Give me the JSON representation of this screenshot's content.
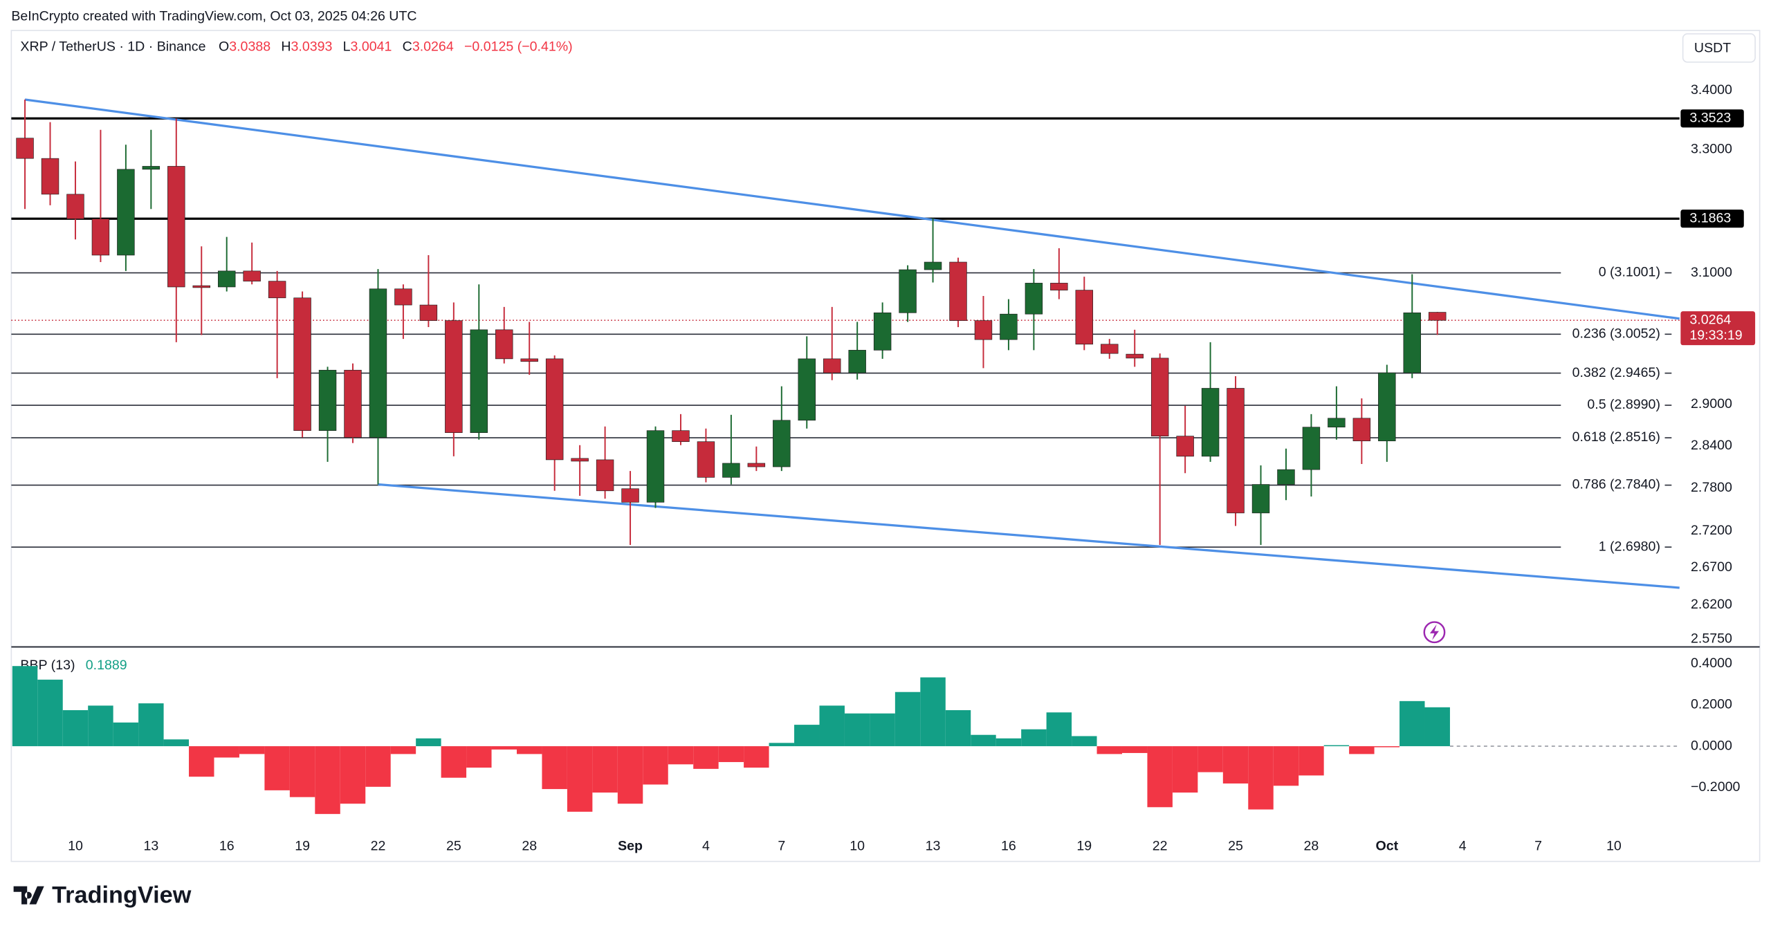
{
  "header": {
    "credit": "BeInCrypto created with TradingView.com, Oct 03, 2025 04:26 UTC",
    "symbol": "XRP / TetherUS · 1D · Binance",
    "o": "O",
    "h": "H",
    "l": "L",
    "c": "C",
    "change": "−0.0125 (−0.41%)",
    "currency": "USDT",
    "countdown": "19:33:19"
  },
  "footer": {
    "brand": "TradingView"
  },
  "chart_data": [
    {
      "type": "candlestick",
      "log_scale": true,
      "categories": [
        null,
        null,
        "10",
        null,
        null,
        "13",
        null,
        null,
        "16",
        null,
        null,
        "19",
        null,
        null,
        "22",
        null,
        null,
        "25",
        null,
        null,
        "28",
        null,
        null,
        null,
        "Sep",
        null,
        null,
        "4",
        null,
        null,
        "7",
        null,
        null,
        "10",
        null,
        null,
        "13",
        null,
        null,
        "16",
        null,
        null,
        "19",
        null,
        null,
        "22",
        null,
        null,
        "25",
        null,
        null,
        "28",
        null,
        null,
        "Oct",
        null,
        null,
        "4",
        null,
        null,
        "7",
        null,
        null,
        "10",
        null,
        null
      ],
      "open": [
        3.319,
        3.285,
        3.226,
        3.186,
        3.128,
        3.267,
        3.272,
        3.08,
        3.078,
        3.103,
        3.087,
        3.061,
        2.862,
        2.951,
        2.852,
        3.075,
        3.05,
        3.026,
        2.859,
        3.012,
        2.968,
        2.968,
        2.822,
        2.82,
        2.779,
        2.76,
        2.862,
        2.846,
        2.795,
        2.815,
        2.81,
        2.877,
        2.968,
        2.947,
        2.981,
        3.038,
        3.105,
        3.117,
        3.026,
        2.997,
        3.036,
        3.084,
        3.073,
        2.99,
        2.975,
        2.969,
        2.854,
        2.825,
        2.924,
        2.745,
        2.785,
        2.806,
        2.867,
        2.88,
        2.847,
        2.947,
        3.0388,
        null,
        null,
        null,
        null,
        null,
        null,
        null,
        null,
        null
      ],
      "high": [
        3.3845,
        3.346,
        3.28,
        3.333,
        3.308,
        3.333,
        3.352,
        3.142,
        3.157,
        3.148,
        3.103,
        3.071,
        2.956,
        2.961,
        3.106,
        3.082,
        3.128,
        3.054,
        3.082,
        3.047,
        3.024,
        2.973,
        2.841,
        2.868,
        2.804,
        2.868,
        2.886,
        2.865,
        2.885,
        2.839,
        2.927,
        3.002,
        3.047,
        3.024,
        3.054,
        3.112,
        3.187,
        3.124,
        3.064,
        3.059,
        3.106,
        3.139,
        3.094,
        2.998,
        3.012,
        2.976,
        2.898,
        2.993,
        2.942,
        2.812,
        2.836,
        2.886,
        2.927,
        2.909,
        2.959,
        3.098,
        3.0393,
        null,
        null,
        null,
        null,
        null,
        null,
        null,
        null,
        null
      ],
      "low": [
        3.202,
        3.208,
        3.153,
        3.117,
        3.103,
        3.202,
        2.993,
        3.004,
        3.071,
        3.082,
        2.939,
        2.852,
        2.817,
        2.844,
        2.785,
        2.998,
        3.016,
        2.825,
        2.849,
        2.961,
        2.944,
        2.776,
        2.769,
        2.765,
        2.701,
        2.752,
        2.841,
        2.788,
        2.785,
        2.804,
        2.804,
        2.865,
        2.936,
        2.937,
        2.968,
        3.024,
        3.085,
        3.016,
        2.954,
        2.981,
        2.981,
        3.059,
        2.981,
        2.968,
        2.956,
        2.701,
        2.801,
        2.817,
        2.727,
        2.701,
        2.763,
        2.768,
        2.849,
        2.814,
        2.817,
        2.939,
        3.0041,
        null,
        null,
        null,
        null,
        null,
        null,
        null,
        null,
        null
      ],
      "close": [
        3.285,
        3.226,
        3.186,
        3.128,
        3.267,
        3.272,
        3.078,
        3.077,
        3.103,
        3.087,
        3.061,
        2.862,
        2.951,
        2.852,
        3.075,
        3.05,
        3.026,
        2.859,
        3.012,
        2.968,
        2.964,
        2.82,
        2.818,
        2.776,
        2.76,
        2.862,
        2.846,
        2.795,
        2.815,
        2.81,
        2.877,
        2.968,
        2.947,
        2.981,
        3.038,
        3.105,
        3.117,
        3.026,
        2.997,
        3.036,
        3.084,
        3.073,
        2.99,
        2.976,
        2.969,
        2.854,
        2.825,
        2.924,
        2.745,
        2.785,
        2.806,
        2.867,
        2.88,
        2.847,
        2.947,
        3.038,
        3.0264,
        null,
        null,
        null,
        null,
        null,
        null,
        null,
        null,
        null
      ],
      "up_color": "#1b6a31",
      "down_color": "#c62b3b",
      "ylim": [
        2.565,
        3.503
      ],
      "yticks": [
        {
          "value": 3.4,
          "label": "3.4000"
        },
        {
          "value": 3.3,
          "label": "3.3000"
        },
        {
          "value": 3.1,
          "label": "3.1000"
        },
        {
          "value": 2.9,
          "label": "2.9000"
        },
        {
          "value": 2.84,
          "label": "2.8400"
        },
        {
          "value": 2.78,
          "label": "2.7800"
        },
        {
          "value": 2.72,
          "label": "2.7200"
        },
        {
          "value": 2.67,
          "label": "2.6700"
        },
        {
          "value": 2.62,
          "label": "2.6200"
        },
        {
          "value": 2.575,
          "label": "2.5750"
        }
      ],
      "horizontal_levels": [
        3.3523,
        3.1863
      ],
      "fib_levels": [
        {
          "value": 3.1001,
          "label": "0 (3.1001)"
        },
        {
          "value": 3.0052,
          "label": "0.236 (3.0052)"
        },
        {
          "value": 2.9465,
          "label": "0.382 (2.9465)"
        },
        {
          "value": 2.899,
          "label": "0.5 (2.8990)"
        },
        {
          "value": 2.8516,
          "label": "0.618 (2.8516)"
        },
        {
          "value": 2.784,
          "label": "0.786 (2.7840)"
        },
        {
          "value": 2.698,
          "label": "1 (2.6980)"
        }
      ],
      "trendlines": [
        {
          "x0": 0,
          "y0": 3.3845,
          "x1": 65.6,
          "y1": 3.029
        },
        {
          "x0": 14,
          "y0": 2.785,
          "x1": 65.6,
          "y1": 2.643
        }
      ],
      "trend_color": "#4d8fe6"
    },
    {
      "type": "bar",
      "title": "BBP (13)",
      "values": [
        0.389,
        0.323,
        0.175,
        0.197,
        0.115,
        0.208,
        0.033,
        -0.148,
        -0.055,
        -0.038,
        -0.214,
        -0.247,
        -0.329,
        -0.279,
        -0.197,
        -0.038,
        0.038,
        -0.153,
        -0.104,
        -0.016,
        -0.038,
        -0.208,
        -0.318,
        -0.225,
        -0.279,
        -0.186,
        -0.088,
        -0.11,
        -0.077,
        -0.104,
        0.016,
        0.104,
        0.197,
        0.159,
        0.159,
        0.263,
        0.334,
        0.175,
        0.055,
        0.038,
        0.082,
        0.164,
        0.049,
        -0.038,
        -0.033,
        -0.296,
        -0.225,
        -0.126,
        -0.181,
        -0.307,
        -0.192,
        -0.142,
        0.005,
        -0.038,
        -0.005,
        0.219,
        0.1889,
        null,
        null,
        null,
        null,
        null,
        null,
        null,
        null,
        null
      ],
      "up_color": "#139f86",
      "down_color": "#f23645",
      "ylim": [
        -0.433,
        0.471
      ],
      "yticks": [
        {
          "value": 0.4,
          "label": "0.4000"
        },
        {
          "value": 0.2,
          "label": "0.2000"
        },
        {
          "value": 0,
          "label": "0.0000"
        },
        {
          "value": -0.2,
          "label": "−0.2000"
        }
      ]
    }
  ]
}
